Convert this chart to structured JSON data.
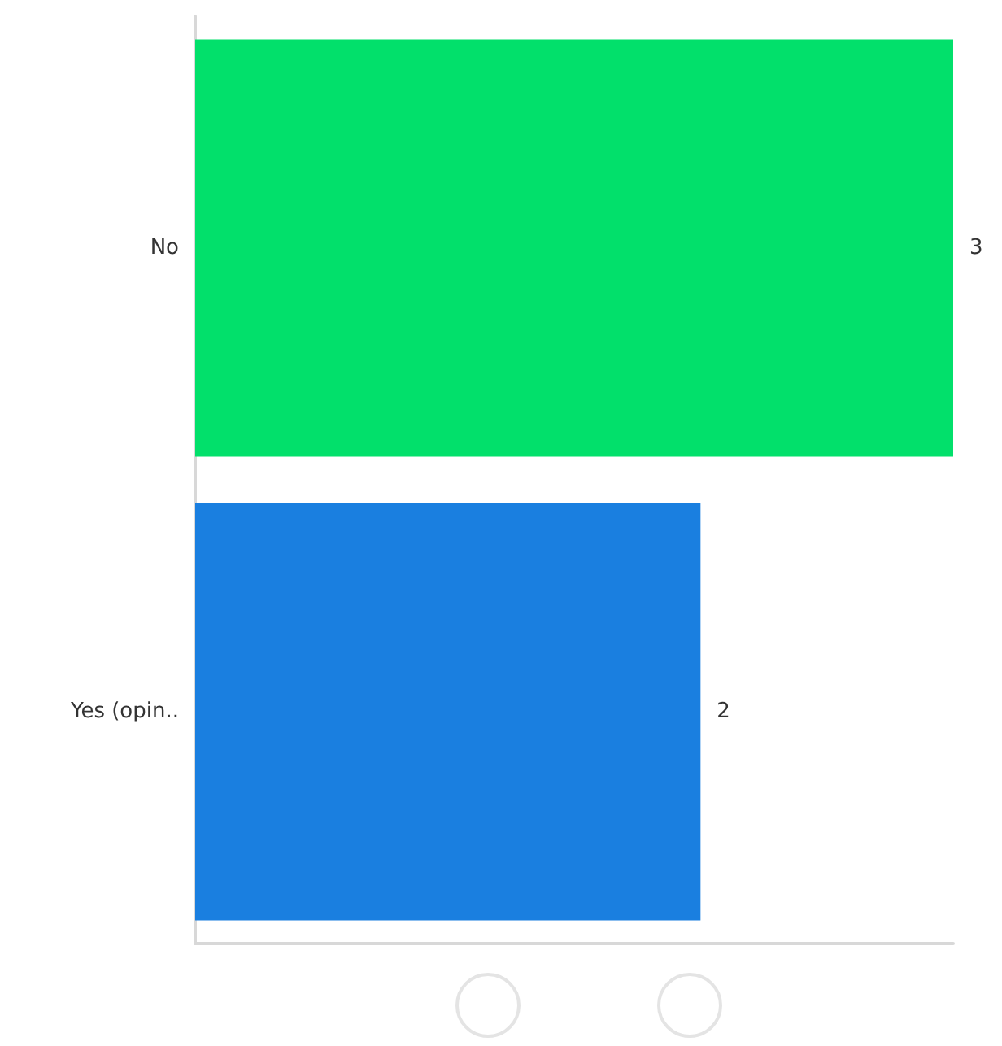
{
  "chart_data": {
    "type": "bar",
    "orientation": "horizontal",
    "categories": [
      "No",
      "Yes (opin.."
    ],
    "values": [
      3,
      2
    ],
    "colors": [
      "#02e06b",
      "#1a7fe0"
    ],
    "data_labels": true
  }
}
